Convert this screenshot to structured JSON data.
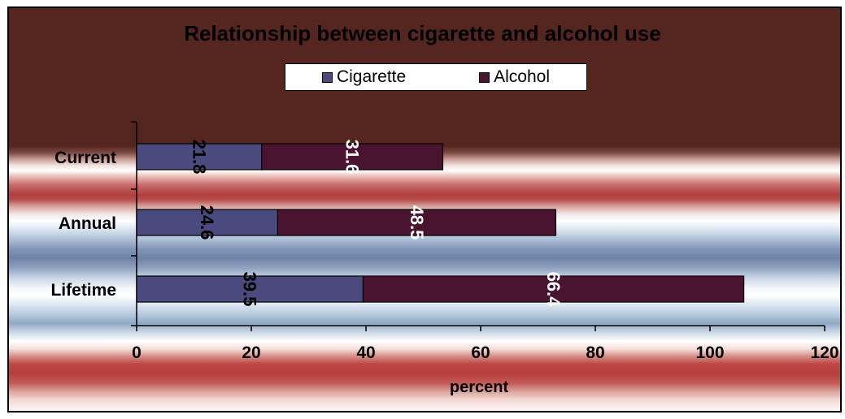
{
  "chart_data": {
    "type": "bar",
    "orientation": "horizontal",
    "stacked": true,
    "title": "Relationship between cigarette and alcohol use",
    "categories": [
      "Current",
      "Annual",
      "Lifetime"
    ],
    "series": [
      {
        "name": "Cigarette",
        "values": [
          21.8,
          24.6,
          39.5
        ],
        "color": "#4b4a7f",
        "label_color": "#000000"
      },
      {
        "name": "Alcohol",
        "values": [
          31.6,
          48.5,
          66.4
        ],
        "color": "#4a1430",
        "label_color": "#ffffff"
      }
    ],
    "xlabel": "percent",
    "ylabel": "",
    "xlim": [
      0,
      120
    ],
    "xticks": [
      0,
      20,
      40,
      60,
      80,
      100,
      120
    ],
    "grid": false,
    "legend_position": "top"
  }
}
